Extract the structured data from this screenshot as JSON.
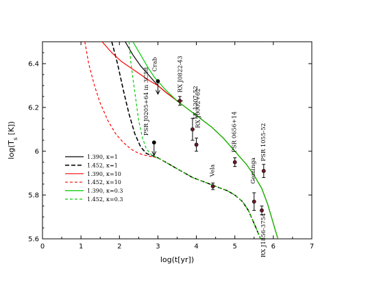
{
  "chart_data": {
    "type": "line",
    "xlabel": "log(t[yr])",
    "ylabel": "log(T",
    "ylabel_sub": "s",
    "ylabel_rest": " [K])",
    "xlim": [
      0,
      7
    ],
    "ylim": [
      5.6,
      6.5
    ],
    "xticks": [
      0,
      1,
      2,
      3,
      4,
      5,
      6,
      7
    ],
    "yticks": [
      5.6,
      5.8,
      6.0,
      6.2,
      6.4
    ],
    "ytick_labels": [
      "5.6",
      "5.8",
      "6",
      "6.2",
      "6.4"
    ],
    "legend_position": "lower-left",
    "series": [
      {
        "name": "1.390,  κ=1",
        "color": "#000000",
        "dash": "solid",
        "x": [
          2.15,
          2.35,
          2.55,
          2.75,
          2.9,
          3.0,
          3.2,
          3.5,
          3.8,
          4.1,
          4.4,
          4.7,
          5.0,
          5.3,
          5.5,
          5.7,
          5.85,
          5.95,
          6.05,
          6.12
        ],
        "y": [
          6.5,
          6.44,
          6.39,
          6.35,
          6.32,
          6.3,
          6.27,
          6.23,
          6.19,
          6.15,
          6.11,
          6.06,
          6.0,
          5.94,
          5.89,
          5.83,
          5.76,
          5.7,
          5.64,
          5.6
        ]
      },
      {
        "name": "1.452,  κ=1",
        "color": "#000000",
        "dash": "dashed",
        "x": [
          1.8,
          1.95,
          2.1,
          2.25,
          2.4,
          2.55,
          2.7,
          2.85,
          3.0,
          3.3,
          3.6,
          3.9,
          4.2,
          4.5,
          4.8,
          5.0,
          5.2,
          5.35,
          5.45,
          5.55,
          5.62,
          5.67
        ],
        "y": [
          6.5,
          6.4,
          6.28,
          6.17,
          6.08,
          6.02,
          5.99,
          5.98,
          5.97,
          5.94,
          5.91,
          5.88,
          5.86,
          5.84,
          5.82,
          5.8,
          5.77,
          5.73,
          5.69,
          5.65,
          5.62,
          5.6
        ]
      },
      {
        "name": "1.390,  κ=10",
        "color": "#ff0000",
        "dash": "solid",
        "x": [
          1.55,
          1.8,
          2.05,
          2.3,
          2.55,
          2.8,
          3.0,
          3.2,
          3.5,
          3.8,
          4.1,
          4.4,
          4.7,
          5.0,
          5.3,
          5.5,
          5.7,
          5.85,
          5.95,
          6.05,
          6.12
        ],
        "y": [
          6.5,
          6.45,
          6.41,
          6.38,
          6.35,
          6.32,
          6.3,
          6.27,
          6.23,
          6.19,
          6.15,
          6.11,
          6.06,
          6.0,
          5.94,
          5.89,
          5.83,
          5.76,
          5.7,
          5.64,
          5.6
        ]
      },
      {
        "name": "1.452,  κ=10",
        "color": "#ff0000",
        "dash": "dashed",
        "x": [
          1.1,
          1.2,
          1.35,
          1.5,
          1.7,
          1.9,
          2.1,
          2.3,
          2.5,
          2.7,
          2.85,
          3.0,
          3.3,
          3.6,
          3.9,
          4.2,
          4.5,
          4.8,
          5.0,
          5.2,
          5.35,
          5.45,
          5.55,
          5.62,
          5.67
        ],
        "y": [
          6.5,
          6.4,
          6.3,
          6.22,
          6.14,
          6.08,
          6.04,
          6.01,
          5.99,
          5.98,
          5.975,
          5.97,
          5.94,
          5.91,
          5.88,
          5.86,
          5.84,
          5.82,
          5.8,
          5.77,
          5.73,
          5.69,
          5.65,
          5.62,
          5.6
        ]
      },
      {
        "name": "1.390,  κ=0.3",
        "color": "#00cc00",
        "dash": "solid",
        "x": [
          2.35,
          2.55,
          2.75,
          2.9,
          3.05,
          3.2,
          3.5,
          3.8,
          4.1,
          4.4,
          4.7,
          5.0,
          5.3,
          5.5,
          5.7,
          5.85,
          5.95,
          6.05,
          6.12
        ],
        "y": [
          6.5,
          6.44,
          6.38,
          6.34,
          6.31,
          6.28,
          6.23,
          6.19,
          6.15,
          6.11,
          6.06,
          6.0,
          5.94,
          5.89,
          5.83,
          5.76,
          5.7,
          5.64,
          5.6
        ]
      },
      {
        "name": "1.452,  κ=0.3",
        "color": "#00cc00",
        "dash": "dashed",
        "x": [
          2.25,
          2.3,
          2.4,
          2.5,
          2.6,
          2.7,
          2.85,
          3.0,
          3.3,
          3.6,
          3.9,
          4.2,
          4.5,
          4.8,
          5.0,
          5.2,
          5.35,
          5.45,
          5.55,
          5.62,
          5.67
        ],
        "y": [
          6.5,
          6.4,
          6.27,
          6.14,
          6.06,
          6.01,
          5.98,
          5.97,
          5.94,
          5.91,
          5.88,
          5.86,
          5.84,
          5.82,
          5.8,
          5.77,
          5.73,
          5.69,
          5.65,
          5.62,
          5.6
        ]
      }
    ],
    "observations": [
      {
        "label": "Crab",
        "x": 3.0,
        "y": 6.32,
        "upper_limit": true,
        "filled": true,
        "xerr": 0,
        "yerr": 0
      },
      {
        "label": "PSR J0205+64 in 3C58",
        "x": 2.9,
        "y": 6.04,
        "upper_limit": true,
        "filled": true,
        "xerr": 0,
        "yerr": 0
      },
      {
        "label": "RX J0822-43",
        "x": 3.57,
        "y": 6.23,
        "upper_limit": false,
        "filled": false,
        "xerr": 0.08,
        "yerr": 0.02
      },
      {
        "label": "1E 1207-52",
        "x": 3.9,
        "y": 6.1,
        "upper_limit": false,
        "filled": false,
        "xerr": 0,
        "yerr": 0.05
      },
      {
        "label": "RX J0002+62",
        "x": 4.0,
        "y": 6.03,
        "upper_limit": false,
        "filled": false,
        "xerr": 0,
        "yerr": 0.03
      },
      {
        "label": "Vela",
        "x": 4.43,
        "y": 5.84,
        "upper_limit": false,
        "filled": false,
        "xerr": 0.05,
        "yerr": 0.015
      },
      {
        "label": "PSR 0656+14",
        "x": 5.0,
        "y": 5.95,
        "upper_limit": false,
        "filled": false,
        "xerr": 0,
        "yerr": 0.02
      },
      {
        "label": "Geminga",
        "x": 5.5,
        "y": 5.77,
        "upper_limit": false,
        "filled": false,
        "xerr": 0,
        "yerr": 0.04
      },
      {
        "label": "RX J1856-3754",
        "x": 5.7,
        "y": 5.73,
        "upper_limit": false,
        "filled": false,
        "xerr": 0,
        "yerr": 0.02
      },
      {
        "label": "PSR 1055-52",
        "x": 5.75,
        "y": 5.91,
        "upper_limit": false,
        "filled": false,
        "xerr": 0,
        "yerr": 0.03
      }
    ]
  }
}
